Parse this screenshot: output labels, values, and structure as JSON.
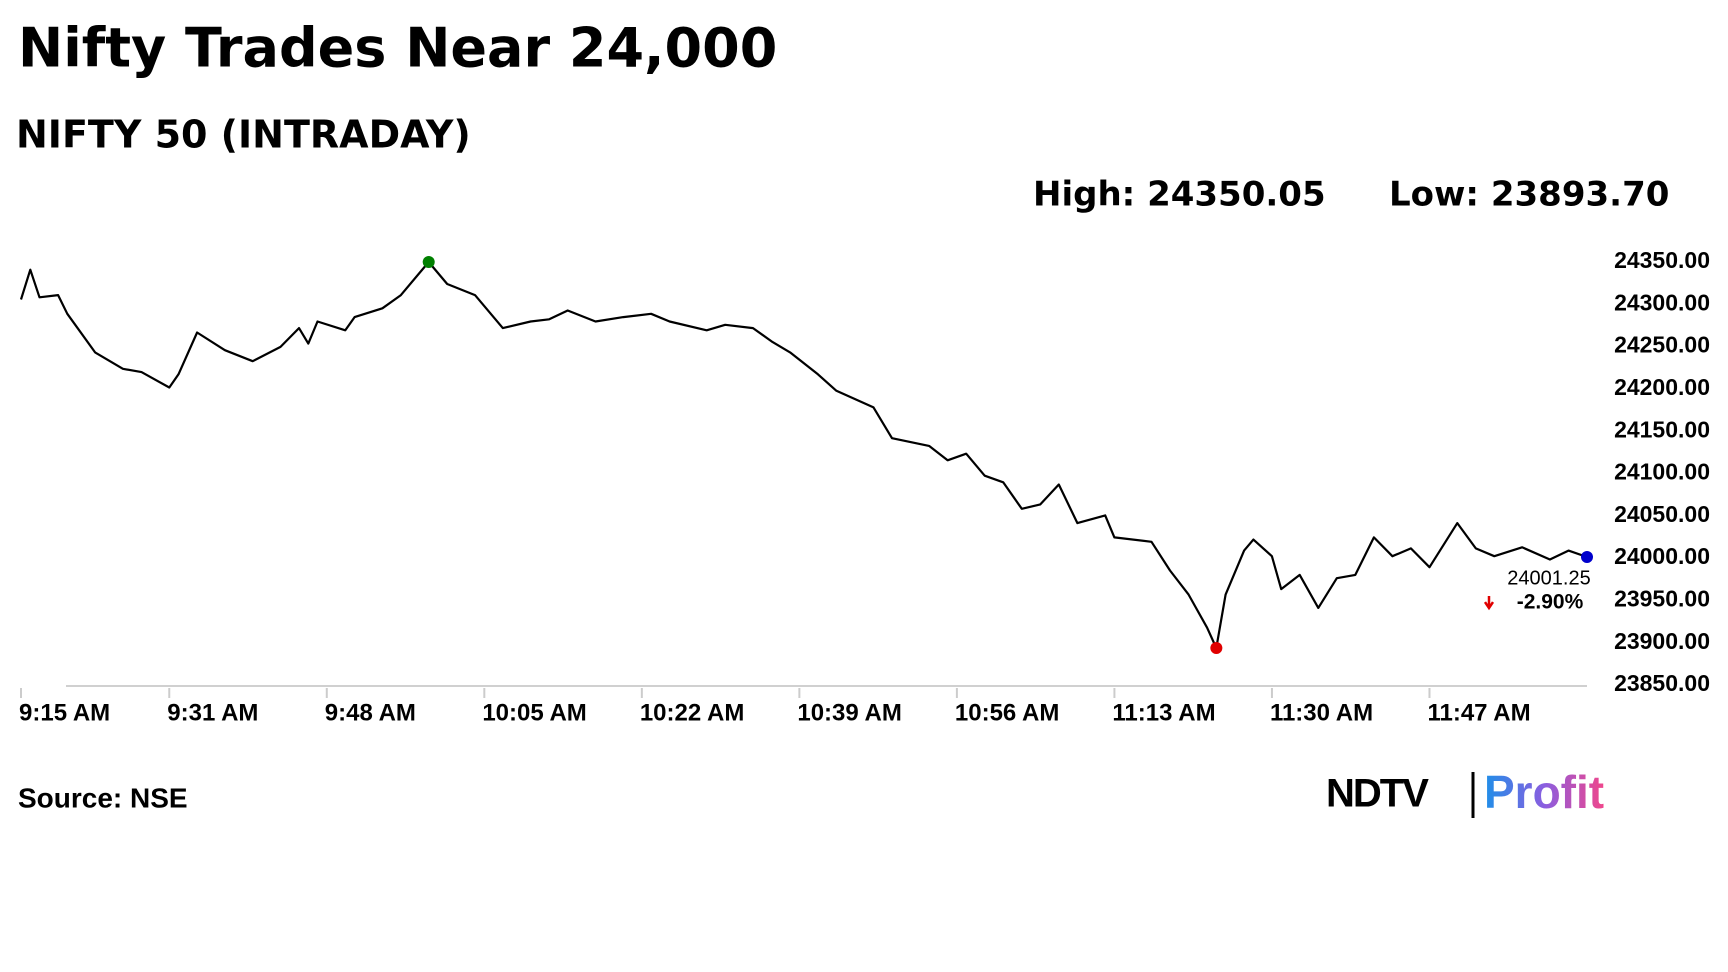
{
  "chart_data": {
    "type": "line",
    "title": "Nifty Trades Near 24,000",
    "subtitle": "NIFTY 50 (INTRADAY)",
    "high": {
      "value": 24350.05,
      "label": "High: 24350.05"
    },
    "low": {
      "value": 23893.7,
      "label": "Low: 23893.70"
    },
    "last": {
      "value": 24001.25,
      "label": "24001.25"
    },
    "change": {
      "value": -2.9,
      "label": "-2.90%"
    },
    "source": "Source: NSE",
    "logo": {
      "brand": "NDTV",
      "product": "Profit"
    },
    "color": "#000000",
    "x": [
      "9:15 AM",
      "9:16 AM",
      "9:17 AM",
      "9:19 AM",
      "9:20 AM",
      "9:23 AM",
      "9:26 AM",
      "9:28 AM",
      "9:31 AM",
      "9:32 AM",
      "9:34 AM",
      "9:37 AM",
      "9:40 AM",
      "9:43 AM",
      "9:45 AM",
      "9:46 AM",
      "9:47 AM",
      "9:50 AM",
      "9:51 AM",
      "9:54 AM",
      "9:56 AM",
      "9:59 AM",
      "10:01 AM",
      "10:04 AM",
      "10:07 AM",
      "10:10 AM",
      "10:12 AM",
      "10:14 AM",
      "10:17 AM",
      "10:20 AM",
      "10:23 AM",
      "10:25 AM",
      "10:29 AM",
      "10:31 AM",
      "10:34 AM",
      "10:36 AM",
      "10:38 AM",
      "10:41 AM",
      "10:43 AM",
      "10:47 AM",
      "10:49 AM",
      "10:53 AM",
      "10:55 AM",
      "10:57 AM",
      "10:59 AM",
      "11:01 AM",
      "11:03 AM",
      "11:05 AM",
      "11:07 AM",
      "11:09 AM",
      "11:12 AM",
      "11:13 AM",
      "11:17 AM",
      "11:19 AM",
      "11:21 AM",
      "11:23 AM",
      "11:24 AM",
      "11:25 AM",
      "11:27 AM",
      "11:28 AM",
      "11:30 AM",
      "11:31 AM",
      "11:33 AM",
      "11:35 AM",
      "11:37 AM",
      "11:39 AM",
      "11:41 AM",
      "11:43 AM",
      "11:45 AM",
      "11:47 AM",
      "11:50 AM",
      "11:52 AM",
      "11:54 AM",
      "11:57 AM",
      "12:00 PM",
      "12:02 PM",
      "12:04 PM"
    ],
    "values": [
      24305.7,
      24340.9,
      24308.3,
      24310.9,
      24288.8,
      24243.2,
      24223.7,
      24219.8,
      24201.6,
      24217.2,
      24266.7,
      24245.8,
      24232.8,
      24249.7,
      24271.9,
      24253.6,
      24279.7,
      24269.3,
      24284.9,
      24295.3,
      24310.9,
      24350.05,
      24324,
      24310.9,
      24271.9,
      24279.7,
      24282.3,
      24292.7,
      24279.7,
      24284.9,
      24288.8,
      24279.7,
      24269.3,
      24275.8,
      24271.9,
      24256.2,
      24243.2,
      24217.2,
      24197.7,
      24178.1,
      24141.7,
      24132.6,
      24115.6,
      24123.4,
      24097.4,
      24089.6,
      24058.3,
      24063.5,
      24087,
      24041.4,
      24050.5,
      24024.5,
      24019.3,
      23985.4,
      23956.8,
      23917.7,
      23893.7,
      23956.8,
      24008.9,
      24021.9,
      24002.3,
      23963.3,
      23980.2,
      23941.1,
      23976.3,
      23980.2,
      24024.5,
      24002.3,
      24011.5,
      23989.3,
      24041.4,
      24011.5,
      24002.3,
      24012.8,
      23998.4,
      24008.9,
      24001.25
    ],
    "xlim": [
      "9:15 AM",
      "12:04 PM"
    ],
    "xticks": [
      "9:15 AM",
      "9:31 AM",
      "9:48 AM",
      "10:05 AM",
      "10:22 AM",
      "10:39 AM",
      "10:56 AM",
      "11:13 AM",
      "11:30 AM",
      "11:47 AM"
    ],
    "ylim": [
      23850,
      24350
    ],
    "yticks": [
      {
        "value": 24350,
        "label": "24350.00"
      },
      {
        "value": 24300,
        "label": "24300.00"
      },
      {
        "value": 24250,
        "label": "24250.00"
      },
      {
        "value": 24200,
        "label": "24200.00"
      },
      {
        "value": 24150,
        "label": "24150.00"
      },
      {
        "value": 24100,
        "label": "24100.00"
      },
      {
        "value": 24050,
        "label": "24050.00"
      },
      {
        "value": 24000,
        "label": "24000.00"
      },
      {
        "value": 23950,
        "label": "23950.00"
      },
      {
        "value": 23900,
        "label": "23900.00"
      },
      {
        "value": 23850,
        "label": "23850.00"
      }
    ],
    "high_color": "#008000",
    "low_color": "#e00000",
    "last_color": "#0000cc",
    "change_color": "#e00000",
    "grid": false
  }
}
